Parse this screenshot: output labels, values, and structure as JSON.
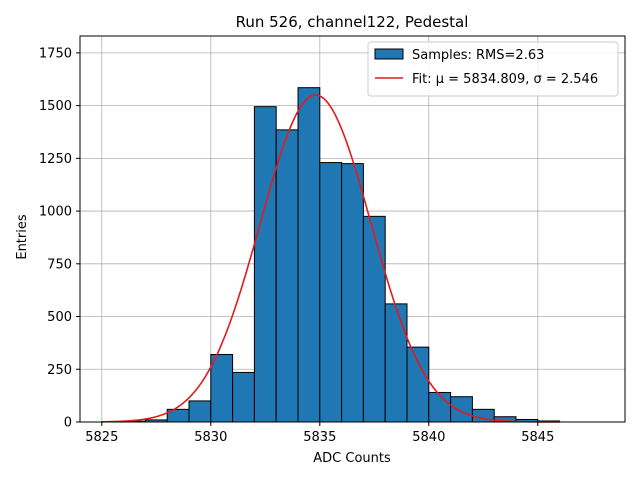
{
  "chart_data": {
    "type": "bar",
    "title": "Run 526, channel122, Pedestal",
    "xlabel": "ADC Counts",
    "ylabel": "Entries",
    "xlim": [
      5824,
      5849
    ],
    "ylim": [
      0,
      1830
    ],
    "xticks": [
      5825,
      5830,
      5835,
      5840,
      5845
    ],
    "yticks": [
      0,
      250,
      500,
      750,
      1000,
      1250,
      1500,
      1750
    ],
    "grid": true,
    "legend_position": "top-right",
    "bins": {
      "edges": [
        5825,
        5826,
        5827,
        5828,
        5829,
        5830,
        5831,
        5832,
        5833,
        5834,
        5835,
        5836,
        5837,
        5838,
        5839,
        5840,
        5841,
        5842,
        5843,
        5844,
        5845,
        5846
      ],
      "counts": [
        2,
        4,
        10,
        60,
        100,
        320,
        235,
        1495,
        1385,
        1585,
        1230,
        1225,
        975,
        560,
        355,
        140,
        120,
        60,
        25,
        12,
        5
      ]
    },
    "series": [
      {
        "name": "Samples: RMS=2.63",
        "kind": "histogram",
        "color": "#1f77b4",
        "edge_color": "#000000"
      },
      {
        "name": "Fit: μ = 5834.809, σ = 2.546",
        "kind": "line",
        "color": "#e41a1c",
        "mu": 5834.809,
        "sigma": 2.546,
        "amplitude": 1550,
        "x_range": [
          5825,
          5846
        ]
      }
    ]
  }
}
